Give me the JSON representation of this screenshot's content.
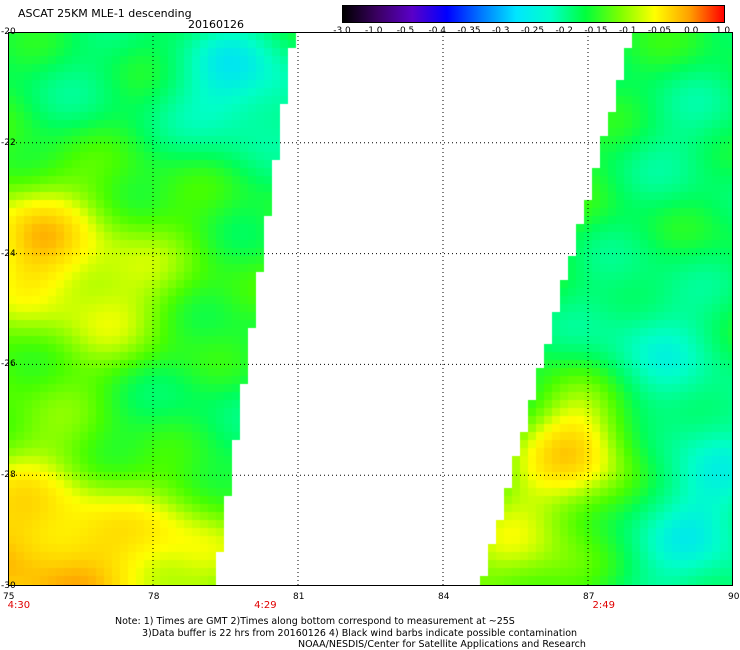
{
  "header": {
    "title": "ASCAT 25KM MLE-1 descending",
    "date": "20160126"
  },
  "colorbar": {
    "colors": [
      "#000000",
      "#3b0063",
      "#5a00c8",
      "#0000ff",
      "#0078ff",
      "#00e6ff",
      "#00ffc8",
      "#00ff3c",
      "#7dff00",
      "#ffff00",
      "#ffa000",
      "#ff0000"
    ],
    "labels": [
      "-3.0",
      "-1.0",
      "-0.5",
      "-0.4",
      "-0.35",
      "-0.3",
      "-0.25",
      "-0.2",
      "-0.15",
      "-0.1",
      "-0.05",
      "0.0",
      "1.0"
    ]
  },
  "map": {
    "lon_range": [
      75,
      90
    ],
    "lat_range": [
      -20,
      -30
    ],
    "x_ticks": [
      "75",
      "78",
      "81",
      "84",
      "87",
      "90"
    ],
    "y_ticks": [
      "-20",
      "-22",
      "-24",
      "-26",
      "-28",
      "-30"
    ],
    "gridlines": "dotted",
    "swath_times": [
      {
        "text": "4:30",
        "lon": 75.2
      },
      {
        "text": "4:29",
        "lon": 80.3
      },
      {
        "text": "2:49",
        "lon": 87.3
      }
    ],
    "swath_left": {
      "lon_east_edge_top": 80.9,
      "lon_east_edge_bottom": 79.1
    },
    "swath_right": {
      "lon_west_edge_top": 87.9,
      "lon_west_edge_bottom": 84.6
    }
  },
  "notes": [
    "Note: 1) Times are GMT 2)Times along bottom correspond to measurement at ~25S",
    "3)Data buffer is 22 hrs from 20160126 4) Black wind barbs indicate possible contamination",
    "NOAA/NESDIS/Center for Satellite Applications and Research"
  ]
}
